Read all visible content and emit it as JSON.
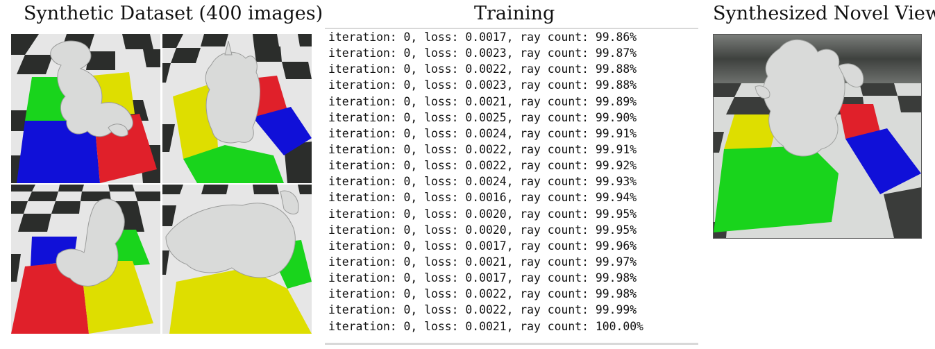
{
  "headings": {
    "dataset": "Synthetic Dataset (400 images)",
    "training": "Training",
    "novel": "Synthesized Novel View"
  },
  "log_lines": [
    "iteration: 0, loss: 0.0017, ray count: 99.86%",
    "iteration: 0, loss: 0.0023, ray count: 99.87%",
    "iteration: 0, loss: 0.0022, ray count: 99.88%",
    "iteration: 0, loss: 0.0023, ray count: 99.88%",
    "iteration: 0, loss: 0.0021, ray count: 99.89%",
    "iteration: 0, loss: 0.0025, ray count: 99.90%",
    "iteration: 0, loss: 0.0024, ray count: 99.91%",
    "iteration: 0, loss: 0.0022, ray count: 99.91%",
    "iteration: 0, loss: 0.0022, ray count: 99.92%",
    "iteration: 0, loss: 0.0024, ray count: 99.93%",
    "iteration: 0, loss: 0.0016, ray count: 99.94%",
    "iteration: 0, loss: 0.0020, ray count: 99.95%",
    "iteration: 0, loss: 0.0020, ray count: 99.95%",
    "iteration: 0, loss: 0.0017, ray count: 99.96%",
    "iteration: 0, loss: 0.0021, ray count: 99.97%",
    "iteration: 0, loss: 0.0017, ray count: 99.98%",
    "iteration: 0, loss: 0.0022, ray count: 99.98%",
    "iteration: 0, loss: 0.0022, ray count: 99.99%",
    "iteration: 0, loss: 0.0021, ray count: 100.00%"
  ],
  "colors": {
    "checker_dark": "#2b2d2b",
    "checker_light": "#e6e6e6",
    "red": "#e0202a",
    "green": "#19d41c",
    "blue": "#1010d8",
    "yellow": "#dede00",
    "dragon": "#d9dad9"
  },
  "icons": [
    "dragon-figure"
  ]
}
